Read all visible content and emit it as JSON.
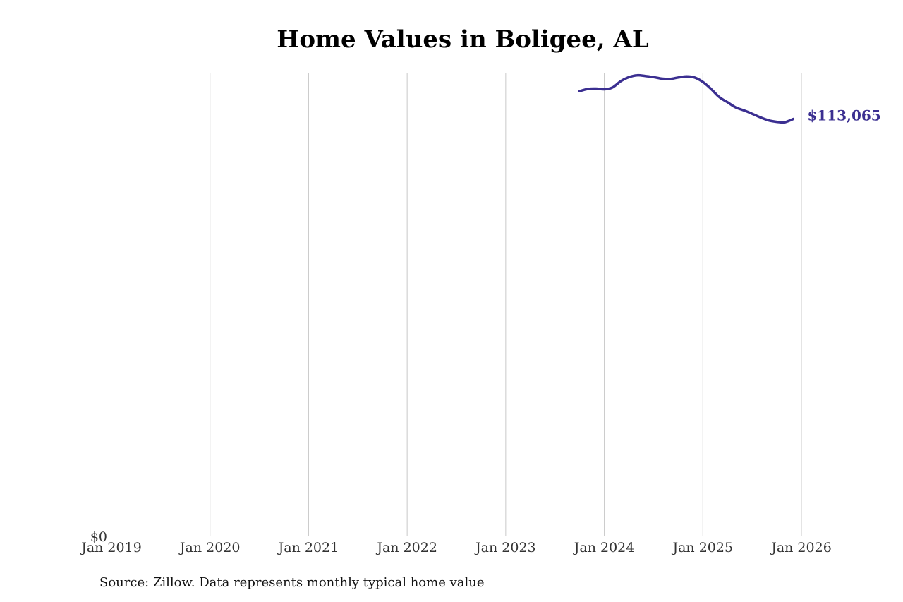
{
  "chart_data": {
    "type": "line",
    "title": "Home Values in Boligee, AL",
    "xlabel": "",
    "ylabel": "",
    "x_tick_labels": [
      "Jan 2019",
      "Jan 2020",
      "Jan 2021",
      "Jan 2022",
      "Jan 2023",
      "Jan 2024",
      "Jan 2025",
      "Jan 2026"
    ],
    "y_tick_labels": [
      "$0"
    ],
    "xlim": [
      "2019-01",
      "2026-01"
    ],
    "ylim": [
      0,
      126000
    ],
    "grid": "vertical lines at year ticks",
    "line_color": "#3b2f91",
    "grid_color": "#c8c8c8",
    "end_label": "$113,065",
    "series": [
      {
        "points": [
          [
            "2023-10",
            120600
          ],
          [
            "2023-11",
            121200
          ],
          [
            "2023-12",
            121300
          ],
          [
            "2024-01",
            121100
          ],
          [
            "2024-02",
            121600
          ],
          [
            "2024-03",
            123300
          ],
          [
            "2024-04",
            124400
          ],
          [
            "2024-05",
            124900
          ],
          [
            "2024-06",
            124700
          ],
          [
            "2024-07",
            124400
          ],
          [
            "2024-08",
            124000
          ],
          [
            "2024-09",
            123900
          ],
          [
            "2024-10",
            124300
          ],
          [
            "2024-11",
            124600
          ],
          [
            "2024-12",
            124300
          ],
          [
            "2025-01",
            123100
          ],
          [
            "2025-02",
            121200
          ],
          [
            "2025-03",
            119000
          ],
          [
            "2025-04",
            117600
          ],
          [
            "2025-05",
            116200
          ],
          [
            "2025-06",
            115400
          ],
          [
            "2025-07",
            114500
          ],
          [
            "2025-08",
            113500
          ],
          [
            "2025-09",
            112700
          ],
          [
            "2025-10",
            112300
          ],
          [
            "2025-11",
            112200
          ],
          [
            "2025-12",
            113065
          ]
        ]
      }
    ]
  },
  "source": "Source: Zillow. Data represents monthly typical home value"
}
